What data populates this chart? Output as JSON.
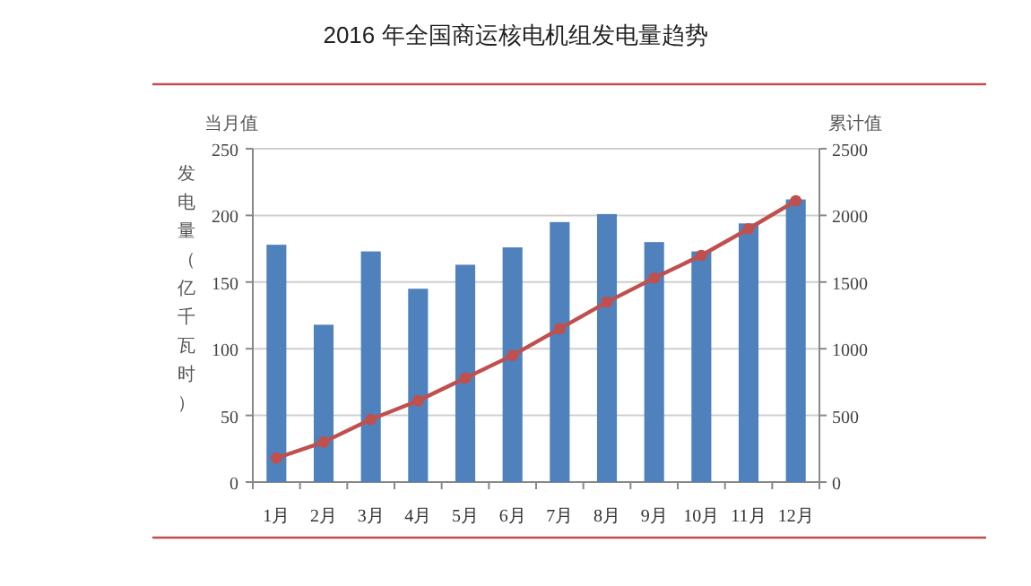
{
  "chart_data": {
    "type": "bar",
    "title": "2016 年全国商运核电机组发电量趋势",
    "ylabel": "发电量（亿千瓦时）",
    "y2label": "累计值",
    "annotations": [
      "当月值"
    ],
    "categories": [
      "1月",
      "2月",
      "3月",
      "4月",
      "5月",
      "6月",
      "7月",
      "8月",
      "9月",
      "10月",
      "11月",
      "12月"
    ],
    "series": [
      {
        "color": "#4f81bd",
        "values": [
          178,
          118,
          173,
          145,
          163,
          176,
          195,
          201,
          180,
          173,
          194,
          212
        ]
      },
      {
        "type": "line",
        "axis": "y2",
        "color": "#c0504d",
        "marker": "circle",
        "line_style": "solid",
        "values": [
          180,
          300,
          470,
          610,
          780,
          950,
          1150,
          1350,
          1530,
          1700,
          1900,
          2110
        ]
      }
    ],
    "ylim": [
      0,
      250
    ],
    "yticks": [
      0,
      50,
      100,
      150,
      200,
      250
    ],
    "y2lim": [
      0,
      2500
    ],
    "y2ticks": [
      0,
      500,
      1000,
      1500,
      2000,
      2500
    ],
    "grid": "y"
  }
}
